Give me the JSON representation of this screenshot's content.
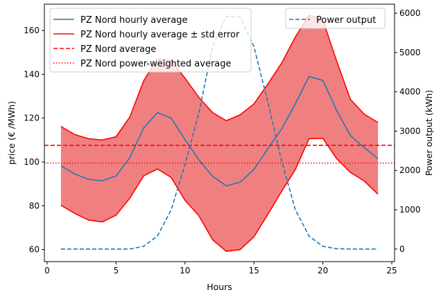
{
  "chart_data": {
    "type": "line",
    "xlabel": "Hours",
    "ylabel_left": "price (€ /MWh)",
    "ylabel_right": "Power output (kWh)",
    "xlim": [
      -0.2,
      25.2
    ],
    "ylim_left": [
      54.5,
      172
    ],
    "ylim_right": [
      -320,
      6230
    ],
    "x_ticks": [
      0,
      5,
      10,
      15,
      20,
      25
    ],
    "y_ticks_left": [
      60,
      80,
      100,
      120,
      140,
      160
    ],
    "y_ticks_right": [
      0,
      1000,
      2000,
      3000,
      4000,
      5000,
      6000
    ],
    "grid": false,
    "x": [
      1,
      2,
      3,
      4,
      5,
      6,
      7,
      8,
      9,
      10,
      11,
      12,
      13,
      14,
      15,
      16,
      17,
      18,
      19,
      20,
      21,
      22,
      23,
      24
    ],
    "series": [
      {
        "name": "PZ Nord hourly average",
        "axis": "left",
        "color": "#1f77b4",
        "style": "solid",
        "values": [
          98.2,
          94.5,
          92.1,
          91.4,
          93.6,
          102.0,
          115.5,
          122.5,
          120.0,
          110.2,
          101.0,
          93.4,
          89.1,
          90.8,
          96.5,
          106.0,
          115.0,
          126.5,
          139.0,
          137.2,
          123.5,
          112.0,
          106.5,
          101.5
        ]
      },
      {
        "name": "PZ Nord hourly average ± std error",
        "axis": "left",
        "color": "#ff0000",
        "style": "band",
        "fill": "#f08080",
        "upper": [
          116.2,
          112.5,
          110.6,
          110.0,
          111.5,
          120.5,
          137.0,
          147.0,
          146.3,
          138.2,
          129.5,
          122.5,
          118.8,
          121.5,
          126.5,
          135.5,
          145.0,
          157.0,
          167.0,
          164.8,
          146.0,
          128.5,
          121.8,
          118.0
        ],
        "lower": [
          80.2,
          76.5,
          73.5,
          72.6,
          75.7,
          83.5,
          93.6,
          96.8,
          92.9,
          82.5,
          75.5,
          64.5,
          59.2,
          60.0,
          65.8,
          76.0,
          86.5,
          96.5,
          110.6,
          110.8,
          101.5,
          95.2,
          91.3,
          85.3
        ]
      },
      {
        "name": "PZ Nord average",
        "axis": "left",
        "color": "#ff0000",
        "style": "dashed",
        "value": 107.6
      },
      {
        "name": "PZ Nord power-weighted average",
        "axis": "left",
        "color": "#ff0000",
        "style": "dotted",
        "value": 99.5
      },
      {
        "name": "Power output",
        "axis": "right",
        "color": "#1f77b4",
        "style": "dashed",
        "values": [
          0,
          0,
          0,
          0,
          0,
          0,
          70,
          330,
          1000,
          2150,
          3450,
          5150,
          5920,
          5900,
          5150,
          3750,
          2250,
          1000,
          330,
          70,
          10,
          0,
          0,
          0
        ]
      }
    ],
    "legend_left_position": "upper-left",
    "legend_right_position": "upper-right"
  }
}
